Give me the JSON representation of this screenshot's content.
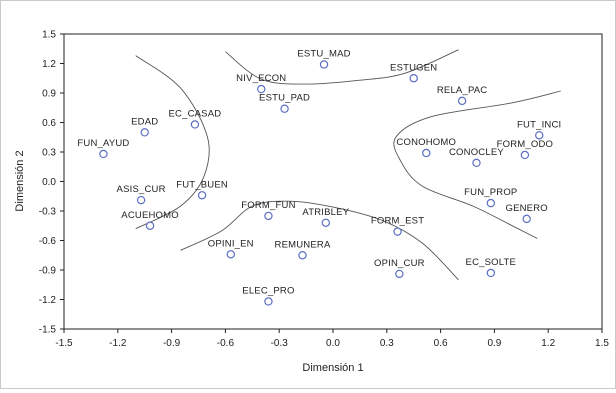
{
  "chart_data": {
    "type": "scatter",
    "xlabel": "Dimensión 1",
    "ylabel": "Dimensión 2",
    "xlim": [
      -1.5,
      1.5
    ],
    "ylim": [
      -1.5,
      1.5
    ],
    "xticks": [
      "-1.5",
      "-1.2",
      "-0.9",
      "-0.6",
      "-0.3",
      "0.0",
      "0.3",
      "0.6",
      "0.9",
      "1.2",
      "1.5"
    ],
    "yticks": [
      "1.5",
      "1.2",
      "0.9",
      "0.6",
      "0.3",
      "0.0",
      "-0.3",
      "-0.6",
      "-0.9",
      "-1.2",
      "-1.5"
    ],
    "grid": false,
    "marker": "open-circle",
    "marker_color": "#5b6ec4",
    "points": [
      {
        "label": "ESTU_MAD",
        "x": -0.05,
        "y": 1.19
      },
      {
        "label": "ESTUGEN",
        "x": 0.45,
        "y": 1.05
      },
      {
        "label": "NIV_ECON",
        "x": -0.4,
        "y": 0.94
      },
      {
        "label": "ESTU_PAD",
        "x": -0.27,
        "y": 0.74
      },
      {
        "label": "RELA_PAC",
        "x": 0.72,
        "y": 0.82
      },
      {
        "label": "EDAD",
        "x": -1.05,
        "y": 0.5
      },
      {
        "label": "EC_CASAD",
        "x": -0.77,
        "y": 0.58
      },
      {
        "label": "FUN_AYUD",
        "x": -1.28,
        "y": 0.28
      },
      {
        "label": "FUT_INCI",
        "x": 1.15,
        "y": 0.47
      },
      {
        "label": "CONOHOMO",
        "x": 0.52,
        "y": 0.29
      },
      {
        "label": "FORM_ODO",
        "x": 1.07,
        "y": 0.27
      },
      {
        "label": "CONOCLEY",
        "x": 0.8,
        "y": 0.19
      },
      {
        "label": "ASIS_CUR",
        "x": -1.07,
        "y": -0.19
      },
      {
        "label": "FUT_BUEN",
        "x": -0.73,
        "y": -0.14
      },
      {
        "label": "ACUEHOMO",
        "x": -1.02,
        "y": -0.45
      },
      {
        "label": "FUN_PROP",
        "x": 0.88,
        "y": -0.22
      },
      {
        "label": "GENERO",
        "x": 1.08,
        "y": -0.38
      },
      {
        "label": "FORM_FUN",
        "x": -0.36,
        "y": -0.35
      },
      {
        "label": "ATRIBLEY",
        "x": -0.04,
        "y": -0.42
      },
      {
        "label": "FORM_EST",
        "x": 0.36,
        "y": -0.51
      },
      {
        "label": "OPINI_EN",
        "x": -0.57,
        "y": -0.74
      },
      {
        "label": "REMUNERA",
        "x": -0.17,
        "y": -0.75
      },
      {
        "label": "OPIN_CUR",
        "x": 0.37,
        "y": -0.94
      },
      {
        "label": "EC_SOLTE",
        "x": 0.88,
        "y": -0.93
      },
      {
        "label": "ELEC_PRO",
        "x": -0.36,
        "y": -1.22
      }
    ],
    "curves": [
      {
        "name": "top-arc",
        "points": [
          [
            -0.6,
            1.32
          ],
          [
            -0.4,
            1.04
          ],
          [
            -0.15,
            0.99
          ],
          [
            0.15,
            1.03
          ],
          [
            0.4,
            1.1
          ],
          [
            0.7,
            1.34
          ]
        ]
      },
      {
        "name": "left-arc",
        "points": [
          [
            -1.1,
            1.28
          ],
          [
            -0.85,
            0.95
          ],
          [
            -0.7,
            0.45
          ],
          [
            -0.72,
            0.05
          ],
          [
            -0.85,
            -0.25
          ],
          [
            -1.1,
            -0.48
          ]
        ]
      },
      {
        "name": "right-arc",
        "points": [
          [
            1.27,
            0.92
          ],
          [
            1.0,
            0.8
          ],
          [
            0.55,
            0.66
          ],
          [
            0.35,
            0.45
          ],
          [
            0.38,
            0.2
          ],
          [
            0.5,
            -0.05
          ],
          [
            0.78,
            -0.25
          ],
          [
            1.0,
            -0.45
          ],
          [
            1.14,
            -0.58
          ]
        ]
      },
      {
        "name": "bottom-arc",
        "points": [
          [
            -0.85,
            -0.7
          ],
          [
            -0.62,
            -0.5
          ],
          [
            -0.45,
            -0.25
          ],
          [
            -0.25,
            -0.2
          ],
          [
            0.0,
            -0.26
          ],
          [
            0.28,
            -0.4
          ],
          [
            0.5,
            -0.63
          ],
          [
            0.7,
            -1.0
          ]
        ]
      }
    ]
  }
}
